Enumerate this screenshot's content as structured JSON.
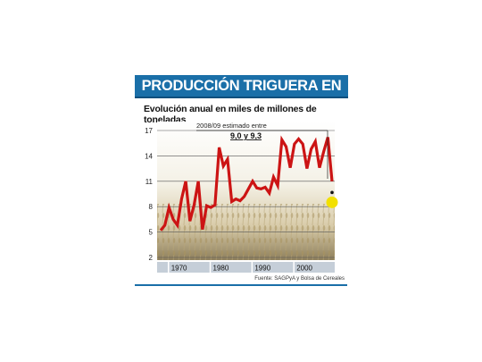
{
  "header": {
    "title": "PRODUCCIÓN TRIGUERA EN BAJA"
  },
  "chart_data": {
    "type": "line",
    "title": "PRODUCCIÓN TRIGUERA EN BAJA",
    "subtitle": "Evolución anual en miles de millones de toneladas",
    "xlabel": "",
    "ylabel": "",
    "y_ticks": [
      2,
      5,
      8,
      11,
      14,
      17
    ],
    "ylim": [
      2,
      17
    ],
    "x_tick_labels": [
      "1970",
      "1980",
      "1990",
      "2000"
    ],
    "xlim": [
      1967,
      2008
    ],
    "grid": true,
    "colors": {
      "line": "#cc1414",
      "highlight": "#f2e000",
      "axis_band": "#c5ced8"
    },
    "series": [
      {
        "x": [
          1967,
          1968,
          1969,
          1970,
          1971,
          1972,
          1973,
          1974,
          1975,
          1976,
          1977,
          1978,
          1979,
          1980,
          1981,
          1982,
          1983,
          1984,
          1985,
          1986,
          1987,
          1988,
          1989,
          1990,
          1991,
          1992,
          1993,
          1994,
          1995,
          1996,
          1997,
          1998,
          1999,
          2000,
          2001,
          2002,
          2003,
          2004,
          2005,
          2006,
          2007,
          2008
        ],
        "values": [
          5.2,
          5.8,
          7.9,
          6.5,
          5.8,
          8.9,
          11.0,
          6.3,
          8.2,
          11.0,
          5.3,
          8.1,
          7.9,
          8.2,
          15.0,
          12.8,
          13.6,
          8.6,
          8.9,
          8.7,
          9.2,
          10.1,
          11.0,
          10.2,
          10.1,
          10.3,
          9.6,
          11.5,
          10.5,
          15.9,
          15.1,
          12.6,
          15.4,
          16.0,
          15.4,
          12.5,
          14.8,
          15.7,
          12.6,
          14.5,
          16.2,
          11.0
        ]
      }
    ],
    "annotation": {
      "label": "2008/09 estimado entre",
      "value": "9,0 y 9,3",
      "x": 2008,
      "y": 9.15
    },
    "source": "Fuente: SAGPyA y Bolsa de Cereales"
  }
}
